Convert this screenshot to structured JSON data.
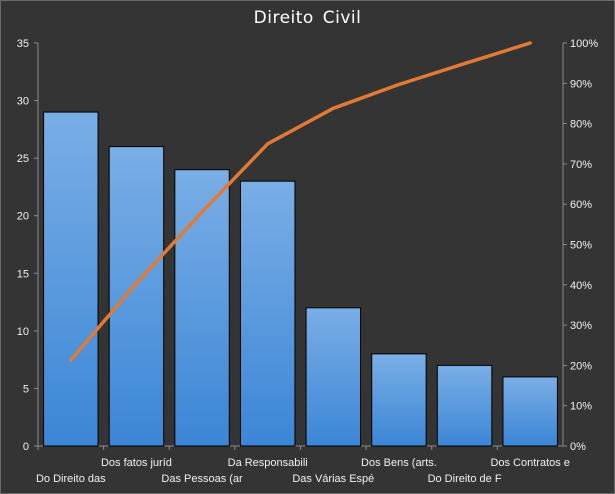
{
  "chart_data": {
    "type": "bar",
    "title": "Direito  Civil",
    "categories": [
      "Do Direito das",
      "Dos fatos juríd",
      "Das Pessoas (ar",
      "Da Responsabili",
      "Das Várias Espé",
      "Dos Bens (arts.",
      "Do Direito de F",
      "Dos Contratos e"
    ],
    "series": [
      {
        "type": "bar",
        "values": [
          29,
          26,
          24,
          23,
          12,
          8,
          7,
          6
        ]
      },
      {
        "type": "line",
        "axis": "secondary",
        "values": [
          21.3,
          40.4,
          58.1,
          75.0,
          83.8,
          89.7,
          94.9,
          100
        ]
      }
    ],
    "y_left": {
      "lim": [
        0,
        35
      ],
      "ticks": [
        "0",
        "5",
        "10",
        "15",
        "20",
        "25",
        "30",
        "35"
      ]
    },
    "y_right": {
      "lim": [
        0,
        100
      ],
      "ticks": [
        "0%",
        "10%",
        "20%",
        "30%",
        "40%",
        "50%",
        "60%",
        "70%",
        "80%",
        "90%",
        "100%"
      ]
    },
    "grid": false,
    "legend": "none",
    "colors": {
      "background": "#343434",
      "bar_top": "#7aaee6",
      "bar_bottom": "#3b86d6",
      "bar_edge": "#000000",
      "line": "#e07a35",
      "text": "#ffffff"
    }
  }
}
